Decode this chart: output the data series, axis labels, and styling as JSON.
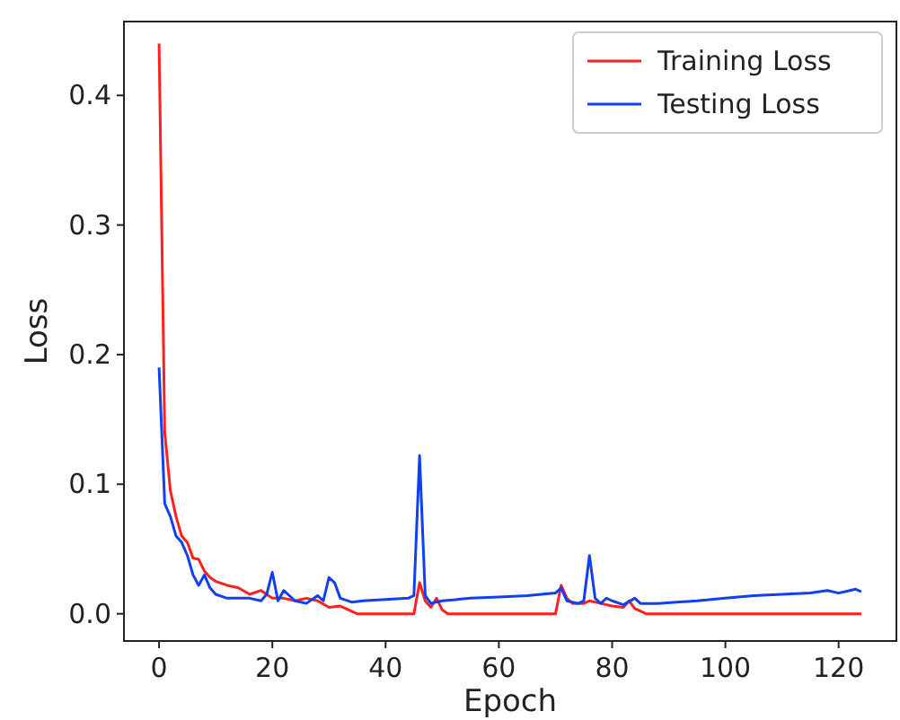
{
  "chart_data": {
    "type": "line",
    "xlabel": "Epoch",
    "ylabel": "Loss",
    "xlim": [
      -6.2,
      130.2
    ],
    "ylim": [
      -0.021,
      0.457
    ],
    "xticks": [
      0,
      20,
      40,
      60,
      80,
      100,
      120
    ],
    "yticks": [
      {
        "value": 0,
        "label": "0.0"
      },
      0.1,
      0.2,
      0.3,
      0.4
    ],
    "legend": "top right",
    "grid": false,
    "series": [
      {
        "name": "Training Loss",
        "color": "#ff2020",
        "x": [
          0,
          1,
          2,
          3,
          4,
          5,
          6,
          7,
          8,
          9,
          10,
          12,
          14,
          16,
          18,
          20,
          22,
          24,
          26,
          28,
          30,
          32,
          34,
          35,
          45,
          46,
          47,
          48,
          49,
          50,
          51,
          70,
          71,
          72,
          73,
          75,
          76,
          78,
          80,
          82,
          83,
          84,
          86,
          124
        ],
        "values": [
          0.44,
          0.14,
          0.095,
          0.075,
          0.06,
          0.055,
          0.043,
          0.042,
          0.033,
          0.028,
          0.025,
          0.022,
          0.02,
          0.015,
          0.018,
          0.012,
          0.012,
          0.01,
          0.012,
          0.01,
          0.005,
          0.006,
          0.002,
          0,
          0,
          0.024,
          0.01,
          0.005,
          0.012,
          0.003,
          0,
          0,
          0.022,
          0.012,
          0.008,
          0.008,
          0.01,
          0.008,
          0.006,
          0.005,
          0.01,
          0.004,
          0,
          0
        ]
      },
      {
        "name": "Testing Loss",
        "color": "#1040f0",
        "x": [
          0,
          1,
          2,
          3,
          4,
          5,
          6,
          7,
          8,
          9,
          10,
          12,
          14,
          16,
          18,
          19,
          20,
          21,
          22,
          24,
          26,
          28,
          29,
          30,
          31,
          32,
          34,
          36,
          40,
          44,
          45,
          46,
          47,
          48,
          50,
          55,
          60,
          65,
          70,
          71,
          72,
          74,
          75,
          76,
          77,
          78,
          79,
          80,
          82,
          84,
          85,
          88,
          95,
          100,
          105,
          110,
          115,
          118,
          120,
          122,
          123,
          124
        ],
        "values": [
          0.19,
          0.085,
          0.075,
          0.06,
          0.055,
          0.045,
          0.03,
          0.022,
          0.03,
          0.02,
          0.015,
          0.012,
          0.012,
          0.012,
          0.01,
          0.015,
          0.032,
          0.01,
          0.018,
          0.01,
          0.008,
          0.014,
          0.01,
          0.028,
          0.024,
          0.012,
          0.009,
          0.01,
          0.011,
          0.012,
          0.014,
          0.122,
          0.014,
          0.008,
          0.01,
          0.012,
          0.013,
          0.014,
          0.016,
          0.02,
          0.01,
          0.008,
          0.01,
          0.045,
          0.012,
          0.008,
          0.012,
          0.01,
          0.007,
          0.012,
          0.008,
          0.008,
          0.01,
          0.012,
          0.014,
          0.015,
          0.016,
          0.018,
          0.016,
          0.018,
          0.019,
          0.017
        ]
      }
    ]
  }
}
